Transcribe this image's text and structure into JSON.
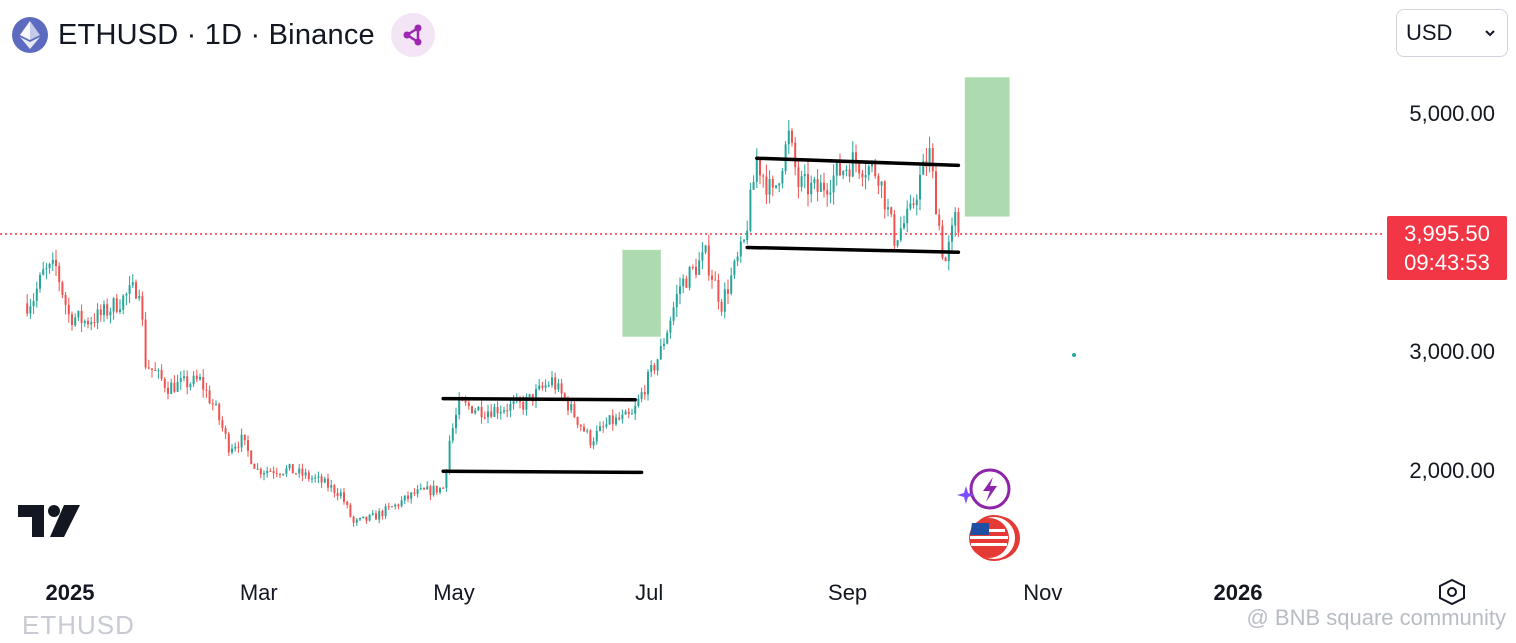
{
  "header": {
    "symbol_title": "ETHUSD · 1D · Binance",
    "logo_icon": "ethereum-icon",
    "share_icon": "share-icon"
  },
  "currency_select": {
    "value": "USD",
    "icon": "chevron-down-icon"
  },
  "price_tag": {
    "price": "3,995.50",
    "countdown": "09:43:53",
    "color": "#f23645"
  },
  "watermark": {
    "symbol": "ETHUSD",
    "source": "@ BNB square community"
  },
  "colors": {
    "up": "#26a69a",
    "down": "#ef5350",
    "zone": "#a5d6a7",
    "line": "#000000",
    "price_line": "#f23645"
  },
  "chart_data": {
    "type": "candlestick",
    "symbol": "ETHUSD",
    "interval": "1D",
    "exchange": "Binance",
    "y_axis": {
      "ticks": [
        2000,
        3000,
        5000
      ],
      "tick_labels": [
        "2,000.00",
        "3,000.00",
        "5,000.00"
      ]
    },
    "x_axis": {
      "ticks": [
        {
          "label": "2025",
          "date": "2025-01-01",
          "bold": true
        },
        {
          "label": "Mar",
          "date": "2025-03-01",
          "bold": false
        },
        {
          "label": "May",
          "date": "2025-05-01",
          "bold": false
        },
        {
          "label": "Jul",
          "date": "2025-07-01",
          "bold": false
        },
        {
          "label": "Sep",
          "date": "2025-09-01",
          "bold": false
        },
        {
          "label": "Nov",
          "date": "2025-11-01",
          "bold": false
        },
        {
          "label": "2026",
          "date": "2026-01-01",
          "bold": true
        }
      ]
    },
    "last_price": 3995.5,
    "path_points": [
      [
        "2024-12-28",
        3400
      ],
      [
        "2024-12-30",
        3450
      ],
      [
        "2025-01-02",
        3650
      ],
      [
        "2025-01-06",
        3700
      ],
      [
        "2025-01-10",
        3300
      ],
      [
        "2025-01-15",
        3250
      ],
      [
        "2025-01-20",
        3300
      ],
      [
        "2025-01-25",
        3400
      ],
      [
        "2025-02-01",
        3550
      ],
      [
        "2025-02-03",
        2900
      ],
      [
        "2025-02-10",
        2700
      ],
      [
        "2025-02-20",
        2750
      ],
      [
        "2025-02-25",
        2500
      ],
      [
        "2025-03-01",
        2200
      ],
      [
        "2025-03-05",
        2250
      ],
      [
        "2025-03-10",
        2000
      ],
      [
        "2025-03-20",
        2000
      ],
      [
        "2025-03-30",
        1900
      ],
      [
        "2025-04-05",
        1800
      ],
      [
        "2025-04-09",
        1550
      ],
      [
        "2025-04-15",
        1600
      ],
      [
        "2025-04-22",
        1700
      ],
      [
        "2025-04-28",
        1800
      ],
      [
        "2025-05-07",
        1850
      ],
      [
        "2025-05-09",
        2250
      ],
      [
        "2025-05-12",
        2550
      ],
      [
        "2025-05-20",
        2500
      ],
      [
        "2025-06-01",
        2550
      ],
      [
        "2025-06-10",
        2750
      ],
      [
        "2025-06-15",
        2550
      ],
      [
        "2025-06-22",
        2250
      ],
      [
        "2025-06-28",
        2400
      ],
      [
        "2025-07-05",
        2450
      ],
      [
        "2025-07-09",
        2700
      ],
      [
        "2025-07-14",
        3000
      ],
      [
        "2025-07-20",
        3550
      ],
      [
        "2025-07-28",
        3800
      ],
      [
        "2025-08-02",
        3400
      ],
      [
        "2025-08-09",
        3900
      ],
      [
        "2025-08-13",
        4600
      ],
      [
        "2025-08-18",
        4300
      ],
      [
        "2025-08-23",
        4800
      ],
      [
        "2025-08-26",
        4400
      ],
      [
        "2025-09-01",
        4350
      ],
      [
        "2025-09-12",
        4600
      ],
      [
        "2025-09-20",
        4500
      ],
      [
        "2025-09-25",
        3950
      ],
      [
        "2025-09-30",
        4150
      ],
      [
        "2025-10-03",
        4450
      ],
      [
        "2025-10-06",
        4650
      ],
      [
        "2025-10-10",
        3850
      ],
      [
        "2025-10-11",
        3750
      ],
      [
        "2025-10-14",
        4100
      ],
      [
        "2025-10-15",
        3995
      ]
    ],
    "annotations": {
      "trend_lines": [
        {
          "from": [
            "2025-05-07",
            2600
          ],
          "to": [
            "2025-07-06",
            2590
          ]
        },
        {
          "from": [
            "2025-05-07",
            1990
          ],
          "to": [
            "2025-07-08",
            1980
          ]
        },
        {
          "from": [
            "2025-08-13",
            4620
          ],
          "to": [
            "2025-10-15",
            4560
          ]
        },
        {
          "from": [
            "2025-08-10",
            3870
          ],
          "to": [
            "2025-10-15",
            3830
          ]
        }
      ],
      "target_zones": [
        {
          "x_start": "2025-07-02",
          "x_end": "2025-07-14",
          "y_low": 3120,
          "y_high": 3850
        },
        {
          "x_start": "2025-10-17",
          "x_end": "2025-10-31",
          "y_low": 4130,
          "y_high": 5300
        }
      ]
    }
  }
}
